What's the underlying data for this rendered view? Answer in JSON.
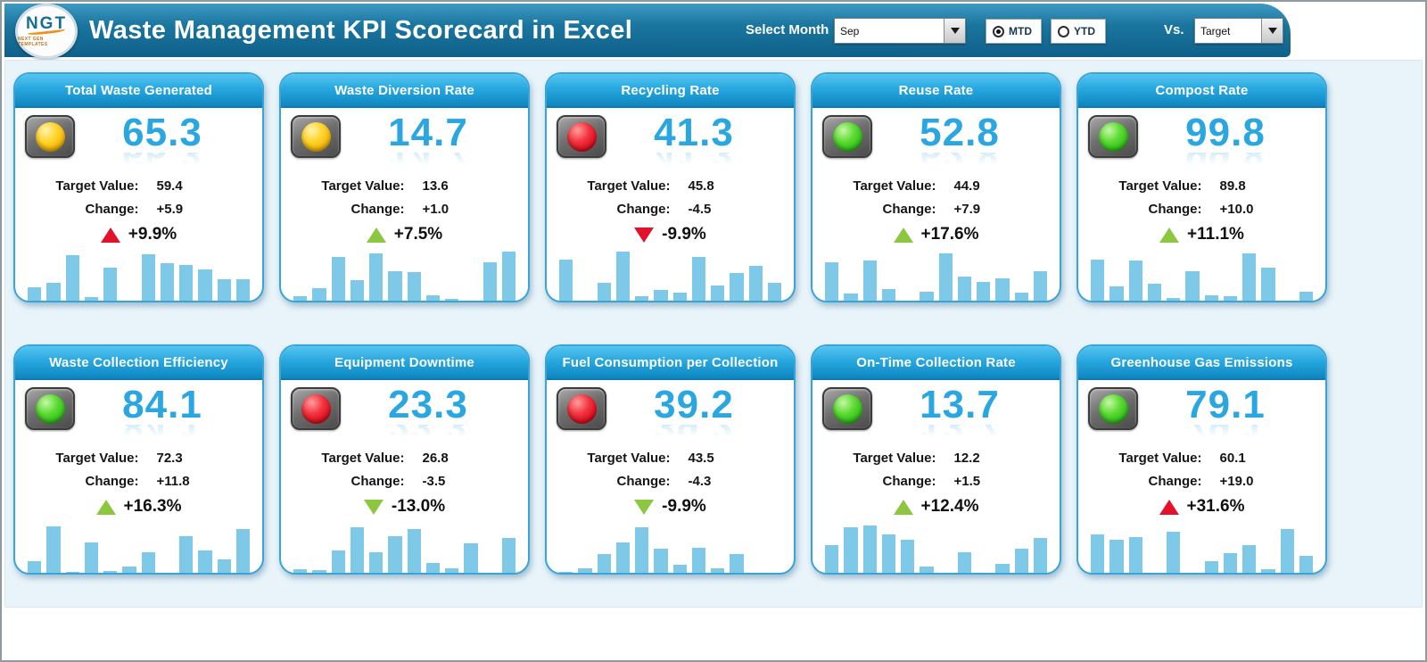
{
  "header": {
    "logo_text": "NGT",
    "logo_subtext": "NEXT GEN TEMPLATES",
    "title": "Waste Management KPI Scorecard in Excel",
    "select_month_label": "Select Month",
    "month_value": "Sep",
    "mtd_label": "MTD",
    "ytd_label": "YTD",
    "mtd_selected": true,
    "vs_label": "Vs.",
    "vs_value": "Target"
  },
  "colors": {
    "header_blue": "#11688f",
    "panel_bg": "#e8f4fa",
    "card_accent_blue": "#2aa6e0",
    "bar_blue": "#7dc9e7",
    "bad_red": "#e3112c",
    "good_green": "#8dc63f",
    "light_yellow": "#ffd42a",
    "light_red": "#e01020",
    "light_green": "#34c31c"
  },
  "cards": [
    {
      "title": "Total Waste Generated",
      "light": "yellow",
      "value": "65.3",
      "target_label": "Target Value:",
      "target": "59.4",
      "change_label": "Change:",
      "change": "+5.9",
      "percent": "+9.9%",
      "arrow": "up",
      "arrow_color": "red",
      "bars": [
        28,
        36,
        88,
        10,
        65,
        3,
        90,
        73,
        70,
        62,
        43,
        43
      ]
    },
    {
      "title": "Waste Diversion Rate",
      "light": "yellow",
      "value": "14.7",
      "target_label": "Target Value:",
      "target": "13.6",
      "change_label": "Change:",
      "change": "+1.0",
      "percent": "+7.5%",
      "arrow": "up",
      "arrow_color": "green",
      "bars": [
        12,
        26,
        85,
        42,
        92,
        58,
        57,
        13,
        6,
        3,
        75,
        95
      ]
    },
    {
      "title": "Recycling Rate",
      "light": "red",
      "value": "41.3",
      "target_label": "Target Value:",
      "target": "45.8",
      "change_label": "Change:",
      "change": "-4.5",
      "percent": "-9.9%",
      "arrow": "down",
      "arrow_color": "red",
      "bars": [
        80,
        3,
        37,
        95,
        12,
        23,
        18,
        85,
        32,
        55,
        68,
        37
      ]
    },
    {
      "title": "Reuse Rate",
      "light": "green",
      "value": "52.8",
      "target_label": "Target Value:",
      "target": "44.9",
      "change_label": "Change:",
      "change": "+7.9",
      "percent": "+17.6%",
      "arrow": "up",
      "arrow_color": "green",
      "bars": [
        75,
        17,
        78,
        25,
        4,
        20,
        92,
        48,
        38,
        45,
        18,
        58
      ]
    },
    {
      "title": "Compost Rate",
      "light": "green",
      "value": "99.8",
      "target_label": "Target Value:",
      "target": "89.8",
      "change_label": "Change:",
      "change": "+10.0",
      "percent": "+11.1%",
      "arrow": "up",
      "arrow_color": "green",
      "bars": [
        80,
        30,
        78,
        35,
        8,
        58,
        13,
        12,
        92,
        65,
        3,
        20
      ]
    },
    {
      "title": "Waste Collection Efficiency",
      "light": "green",
      "value": "84.1",
      "target_label": "Target Value:",
      "target": "72.3",
      "change_label": "Change:",
      "change": "+11.8",
      "percent": "+16.3%",
      "arrow": "up",
      "arrow_color": "green",
      "bars": [
        25,
        90,
        5,
        60,
        7,
        15,
        42,
        3,
        72,
        45,
        28,
        85
      ]
    },
    {
      "title": "Equipment Downtime",
      "light": "red",
      "value": "23.3",
      "target_label": "Target Value:",
      "target": "26.8",
      "change_label": "Change:",
      "change": "-3.5",
      "percent": "-13.0%",
      "arrow": "down",
      "arrow_color": "green",
      "bars": [
        10,
        8,
        45,
        88,
        42,
        72,
        85,
        22,
        12,
        58,
        3,
        68
      ]
    },
    {
      "title": "Fuel Consumption per Collection",
      "light": "red",
      "value": "39.2",
      "target_label": "Target Value:",
      "target": "43.5",
      "change_label": "Change:",
      "change": "-4.3",
      "percent": "-9.9%",
      "arrow": "down",
      "arrow_color": "green",
      "bars": [
        5,
        12,
        38,
        60,
        88,
        48,
        18,
        50,
        12,
        38,
        4,
        4
      ]
    },
    {
      "title": "On-Time Collection Rate",
      "light": "green",
      "value": "13.7",
      "target_label": "Target Value:",
      "target": "12.2",
      "change_label": "Change:",
      "change": "+1.5",
      "percent": "+12.4%",
      "arrow": "up",
      "arrow_color": "green",
      "bars": [
        55,
        88,
        92,
        75,
        65,
        15,
        3,
        42,
        3,
        20,
        48,
        68
      ]
    },
    {
      "title": "Greenhouse Gas Emissions",
      "light": "green",
      "value": "79.1",
      "target_label": "Target Value:",
      "target": "60.1",
      "change_label": "Change:",
      "change": "+19.0",
      "percent": "+31.6%",
      "arrow": "up",
      "arrow_color": "red",
      "bars": [
        75,
        65,
        70,
        3,
        80,
        3,
        25,
        40,
        55,
        10,
        85,
        35
      ]
    }
  ]
}
